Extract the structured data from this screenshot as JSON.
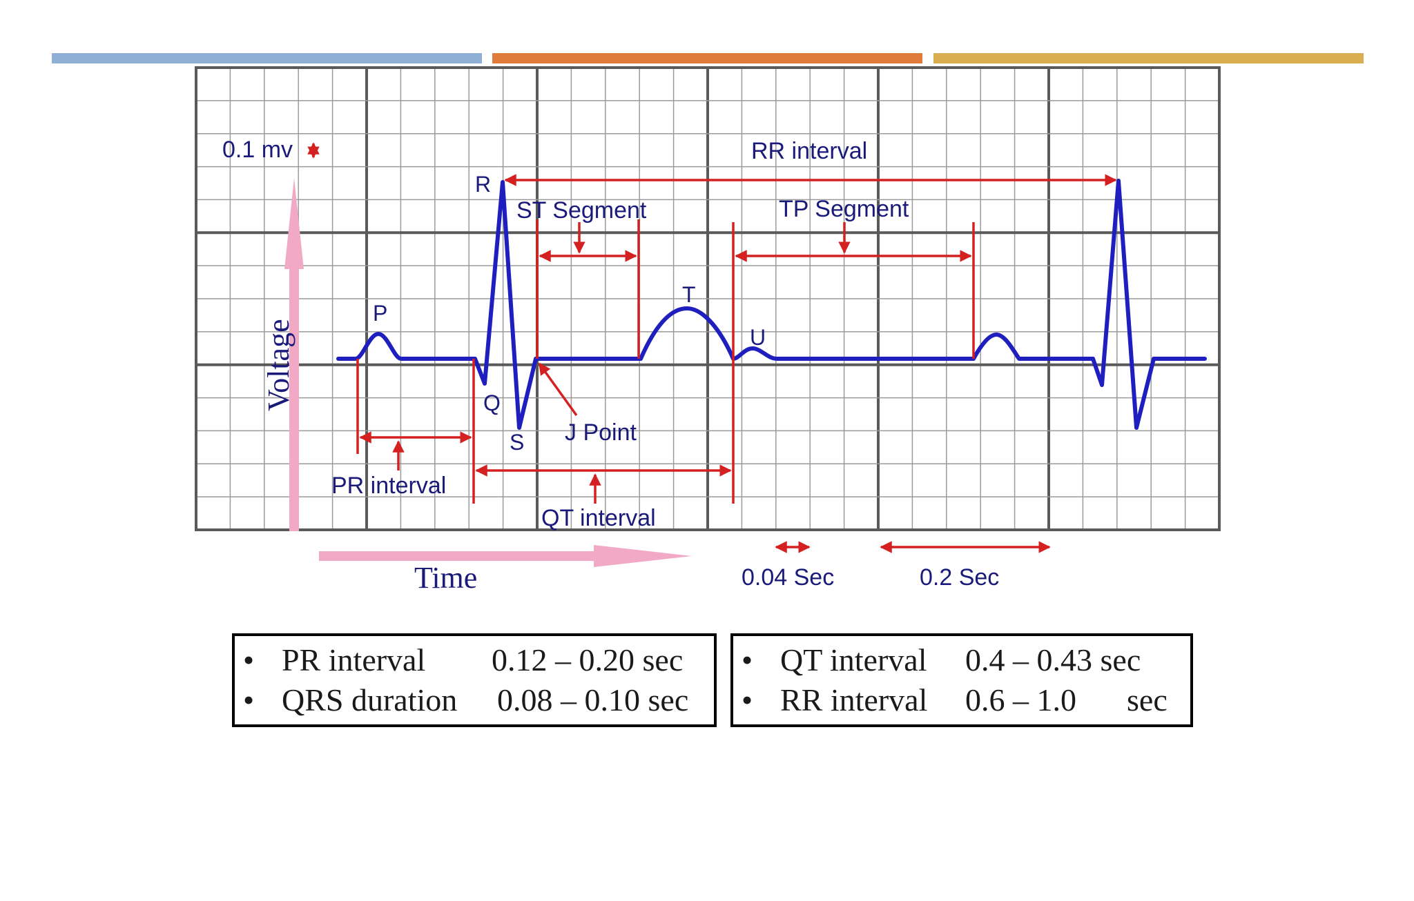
{
  "slide": {
    "accent_colors": [
      "#8fb0d4",
      "#e07b3a",
      "#d8ae50"
    ]
  },
  "diagram": {
    "scale_label": "0.1 mv",
    "voltage_label": "Voltage",
    "time_label": "Time",
    "wave_labels": {
      "p": "P",
      "q": "Q",
      "r": "R",
      "s": "S",
      "t": "T",
      "u": "U"
    },
    "annotations": {
      "rr_interval": "RR interval",
      "st_segment": "ST Segment",
      "tp_segment": "TP Segment",
      "j_point": "J Point",
      "pr_interval": "PR interval",
      "qt_interval": "QT interval"
    },
    "small_box_label": "0.04 Sec",
    "large_box_label": "0.2 Sec",
    "colors": {
      "trace": "#1f1fbf",
      "annotation": "#d42020",
      "grid_minor": "#9a9a9a",
      "grid_major": "#5a5a5a",
      "axis_arrow": "#f2a9c6",
      "text": "#1a1a7a"
    }
  },
  "summary": {
    "left": [
      {
        "bullet": "•",
        "name": "PR interval",
        "value": "0.12 – 0.20 sec"
      },
      {
        "bullet": "•",
        "name": "QRS duration",
        "value": "0.08 – 0.10 sec"
      }
    ],
    "right": [
      {
        "bullet": "•",
        "name": "QT interval",
        "value": "0.4 – 0.43 sec"
      },
      {
        "bullet": "•",
        "name": "RR interval",
        "value": "0.6 – 1.0",
        "unit": "sec"
      }
    ]
  }
}
